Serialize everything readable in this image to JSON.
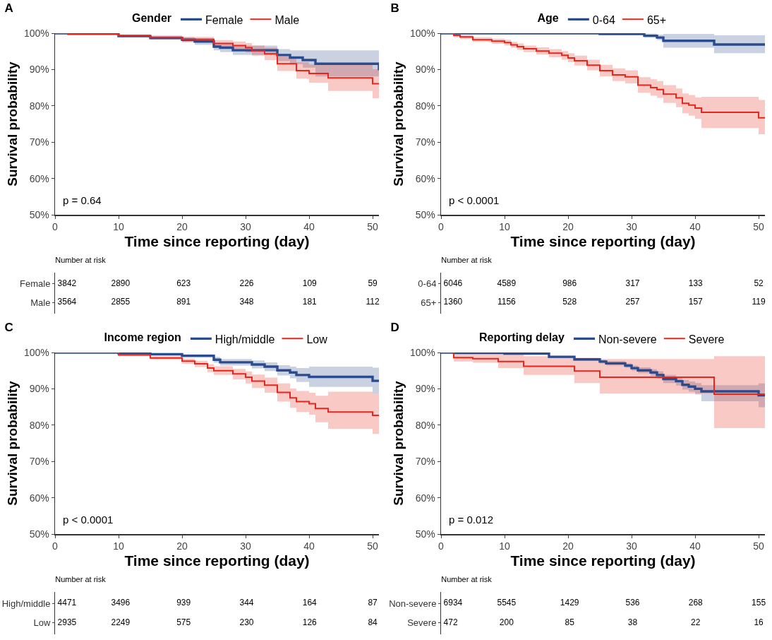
{
  "chart_data": [
    {
      "type": "step",
      "title": "A",
      "xlabel": "Time since reporting (day)",
      "ylabel": "Survival probability",
      "legend_title": "Gender",
      "legend": "top",
      "annotations": [
        "p = 0.64"
      ],
      "xlim": [
        0,
        51
      ],
      "xticks": [
        0,
        10,
        20,
        30,
        40,
        50
      ],
      "ylim": [
        50,
        100
      ],
      "yticks": [
        {
          "value": 50,
          "label": "50%"
        },
        {
          "value": 60,
          "label": "60%"
        },
        {
          "value": 70,
          "label": "70%"
        },
        {
          "value": 80,
          "label": "80%"
        },
        {
          "value": 90,
          "label": "90%"
        },
        {
          "value": 100,
          "label": "100%"
        }
      ],
      "series": [
        {
          "name": "Female",
          "color": "#2a4b8d",
          "x": [
            0,
            10,
            15,
            20,
            22,
            25,
            26,
            28,
            35,
            37,
            39,
            41,
            51
          ],
          "values": [
            100,
            99.2,
            98.7,
            98.2,
            97.7,
            96.3,
            96.0,
            95.3,
            94.0,
            93.3,
            92.6,
            91.6,
            89.8
          ],
          "lower": [
            100,
            99.0,
            98.3,
            97.5,
            96.8,
            95.3,
            94.8,
            94.0,
            92.3,
            91.5,
            90.5,
            88.1,
            85.8
          ],
          "upper": [
            100,
            99.6,
            99.3,
            98.9,
            98.6,
            97.3,
            97.1,
            96.6,
            95.6,
            95.3,
            95.3,
            95.3,
            95.3
          ]
        },
        {
          "name": "Male",
          "color": "#e8261c",
          "x": [
            0,
            2,
            10,
            15,
            20,
            25,
            28,
            30,
            31,
            33,
            35,
            38,
            40,
            43,
            50,
            51
          ],
          "values": [
            100,
            99.7,
            99.3,
            98.8,
            98.3,
            97.2,
            96.6,
            96.0,
            95.2,
            94.3,
            91.6,
            89.7,
            88.9,
            87.7,
            86.1,
            86.1
          ],
          "lower": [
            100,
            99.5,
            99.0,
            98.3,
            97.6,
            96.3,
            95.5,
            94.7,
            93.8,
            92.6,
            89.6,
            87.5,
            86.4,
            84.1,
            82.1,
            82.1
          ],
          "upper": [
            100,
            99.9,
            99.6,
            99.3,
            99.0,
            98.1,
            97.7,
            97.3,
            96.6,
            96.0,
            93.6,
            92.0,
            91.4,
            91.3,
            90.1,
            90.1
          ]
        }
      ]
    },
    {
      "type": "step",
      "title": "B",
      "xlabel": "Time since reporting (day)",
      "ylabel": "Survival probability",
      "legend_title": "Age",
      "legend": "top",
      "annotations": [
        "p < 0.0001"
      ],
      "xlim": [
        0,
        51
      ],
      "xticks": [
        0,
        10,
        20,
        30,
        40,
        50
      ],
      "ylim": [
        50,
        100
      ],
      "yticks": [
        {
          "value": 50,
          "label": "50%"
        },
        {
          "value": 60,
          "label": "60%"
        },
        {
          "value": 70,
          "label": "70%"
        },
        {
          "value": 80,
          "label": "80%"
        },
        {
          "value": 90,
          "label": "90%"
        },
        {
          "value": 100,
          "label": "100%"
        }
      ],
      "series": [
        {
          "name": "0-64",
          "color": "#2a4b8d",
          "x": [
            0,
            25,
            32,
            34,
            35,
            43,
            51
          ],
          "values": [
            100,
            99.8,
            99.3,
            98.8,
            97.9,
            96.9,
            96.9
          ],
          "lower": [
            100,
            99.6,
            98.8,
            98.1,
            96.0,
            94.5,
            94.5
          ],
          "upper": [
            100,
            100,
            99.9,
            99.6,
            99.8,
            99.4,
            99.4
          ]
        },
        {
          "name": "65+",
          "color": "#e8261c",
          "x": [
            0,
            2,
            3,
            5,
            8,
            10,
            11,
            12,
            13,
            15,
            17,
            19,
            20,
            21,
            23,
            25,
            27,
            29,
            31,
            33,
            34,
            35,
            37,
            38,
            39,
            40,
            41,
            50,
            51
          ],
          "values": [
            100,
            99.4,
            99.0,
            98.2,
            97.8,
            97.4,
            96.8,
            96.3,
            95.7,
            95.1,
            94.5,
            93.9,
            93.2,
            92.4,
            91.2,
            89.7,
            88.5,
            88.0,
            85.7,
            85.0,
            84.5,
            83.2,
            82.2,
            80.7,
            80.2,
            79.4,
            78.2,
            76.7,
            76.7
          ],
          "lower": [
            100,
            98.9,
            98.4,
            97.6,
            97.1,
            96.6,
            96.0,
            95.4,
            94.8,
            94.1,
            93.4,
            92.7,
            92.0,
            91.1,
            89.8,
            88.1,
            86.8,
            86.2,
            83.6,
            82.8,
            82.2,
            80.8,
            79.6,
            77.9,
            77.3,
            76.4,
            73.9,
            72.2,
            72.2
          ],
          "upper": [
            100,
            99.8,
            99.5,
            98.9,
            98.5,
            98.2,
            97.6,
            97.2,
            96.6,
            96.1,
            95.6,
            95.1,
            94.5,
            93.8,
            92.7,
            91.3,
            90.3,
            89.8,
            87.9,
            87.3,
            86.8,
            85.7,
            84.8,
            83.4,
            83.0,
            82.3,
            82.5,
            81.6,
            81.6
          ]
        }
      ]
    },
    {
      "type": "other",
      "title": "Number at risk",
      "y_categories": [
        "Female",
        "Male"
      ],
      "annotations": [
        "3842",
        "2890",
        "623",
        "226",
        "109",
        "59",
        "3564",
        "2855",
        "891",
        "348",
        "181",
        "112"
      ]
    },
    {
      "type": "other",
      "title": "Number at risk",
      "y_categories": [
        "0-64",
        "65+"
      ],
      "annotations": [
        "6046",
        "4589",
        "986",
        "317",
        "133",
        "52",
        "1360",
        "1156",
        "528",
        "257",
        "157",
        "119"
      ]
    },
    {
      "type": "step",
      "title": "C",
      "xlabel": "Time since reporting (day)",
      "ylabel": "Survival probability",
      "legend_title": "Income region",
      "legend": "top",
      "annotations": [
        "p < 0.0001"
      ],
      "xlim": [
        0,
        51
      ],
      "xticks": [
        0,
        10,
        20,
        30,
        40,
        50
      ],
      "ylim": [
        50,
        100
      ],
      "yticks": [
        {
          "value": 50,
          "label": "50%"
        },
        {
          "value": 60,
          "label": "60%"
        },
        {
          "value": 70,
          "label": "70%"
        },
        {
          "value": 80,
          "label": "80%"
        },
        {
          "value": 90,
          "label": "90%"
        },
        {
          "value": 100,
          "label": "100%"
        }
      ],
      "series": [
        {
          "name": "High/middle",
          "color": "#2a4b8d",
          "x": [
            0,
            10,
            15,
            20,
            25,
            26,
            31,
            33,
            35,
            37,
            38,
            40,
            50,
            51
          ],
          "values": [
            100,
            99.8,
            99.5,
            99.1,
            98.0,
            97.3,
            96.7,
            96.1,
            95.1,
            94.5,
            93.8,
            93.3,
            92.2,
            92.2
          ],
          "lower": [
            100,
            99.6,
            99.2,
            98.6,
            97.2,
            96.4,
            95.6,
            94.9,
            93.7,
            92.9,
            91.9,
            90.5,
            88.7,
            88.7
          ],
          "upper": [
            100,
            99.9,
            99.8,
            99.5,
            98.8,
            98.2,
            97.8,
            97.3,
            96.5,
            96.1,
            95.7,
            96.1,
            95.8,
            95.8
          ]
        },
        {
          "name": "Low",
          "color": "#e8261c",
          "x": [
            0,
            10,
            15,
            20,
            22,
            24,
            25,
            28,
            30,
            31,
            33,
            35,
            37,
            38,
            40,
            41,
            43,
            50,
            51
          ],
          "values": [
            100,
            99.3,
            98.5,
            97.6,
            96.9,
            95.7,
            95.0,
            94.1,
            93.2,
            92.1,
            91.0,
            89.0,
            87.5,
            86.5,
            85.9,
            84.6,
            83.6,
            82.7,
            82.7
          ],
          "lower": [
            100,
            99.0,
            98.0,
            96.9,
            96.0,
            94.6,
            93.8,
            92.6,
            91.5,
            90.2,
            88.9,
            86.5,
            84.8,
            83.6,
            82.9,
            80.8,
            79.0,
            77.6,
            77.6
          ],
          "upper": [
            100,
            99.6,
            99.0,
            98.3,
            97.7,
            96.8,
            96.2,
            95.5,
            94.8,
            93.9,
            93.1,
            91.5,
            90.1,
            89.4,
            88.9,
            88.1,
            89.2,
            88.7,
            88.7
          ]
        }
      ]
    },
    {
      "type": "step",
      "title": "D",
      "xlabel": "Time since reporting (day)",
      "ylabel": "Survival probability",
      "legend_title": "Reporting delay",
      "legend": "top",
      "annotations": [
        "p = 0.012"
      ],
      "xlim": [
        0,
        51
      ],
      "xticks": [
        0,
        10,
        20,
        30,
        40,
        50
      ],
      "ylim": [
        50,
        100
      ],
      "yticks": [
        {
          "value": 50,
          "label": "50%"
        },
        {
          "value": 60,
          "label": "60%"
        },
        {
          "value": 70,
          "label": "70%"
        },
        {
          "value": 80,
          "label": "80%"
        },
        {
          "value": 90,
          "label": "90%"
        },
        {
          "value": 100,
          "label": "100%"
        }
      ],
      "series": [
        {
          "name": "Non-severe",
          "color": "#2a4b8d",
          "x": [
            0,
            2,
            10,
            17,
            21,
            25,
            26,
            29,
            30,
            31,
            33,
            34,
            35,
            37,
            38,
            39,
            40,
            41,
            50,
            51
          ],
          "values": [
            100,
            99.9,
            99.7,
            98.8,
            98.1,
            97.5,
            97.0,
            96.4,
            95.7,
            95.1,
            94.5,
            93.8,
            92.7,
            92.1,
            91.1,
            90.6,
            90.0,
            89.3,
            88.2,
            88.2
          ],
          "lower": [
            100,
            99.8,
            99.5,
            98.5,
            97.7,
            97.0,
            96.4,
            95.8,
            95.0,
            94.3,
            93.6,
            92.8,
            91.6,
            90.9,
            89.8,
            89.2,
            88.4,
            86.6,
            84.9,
            84.9
          ],
          "upper": [
            100,
            100,
            99.8,
            99.1,
            98.5,
            98.0,
            97.6,
            97.0,
            96.4,
            95.9,
            95.4,
            94.8,
            93.8,
            93.3,
            92.4,
            92.0,
            91.6,
            91.0,
            91.5,
            91.5
          ]
        },
        {
          "name": "Severe",
          "color": "#e8261c",
          "x": [
            0,
            2,
            5,
            9,
            13,
            21,
            25,
            43,
            51
          ],
          "values": [
            100,
            98.6,
            98.3,
            97.5,
            96.2,
            94.9,
            93.2,
            88.5,
            88.5
          ],
          "lower": [
            100,
            97.5,
            97.2,
            95.7,
            93.8,
            91.6,
            88.7,
            79.2,
            79.2
          ],
          "upper": [
            100,
            99.9,
            99.9,
            99.6,
            99.0,
            98.5,
            98.2,
            99.0,
            99.0
          ]
        }
      ]
    },
    {
      "type": "other",
      "title": "Number at risk",
      "y_categories": [
        "High/middle",
        "Low"
      ],
      "annotations": [
        "4471",
        "3496",
        "939",
        "344",
        "164",
        "87",
        "2935",
        "2249",
        "575",
        "230",
        "126",
        "84"
      ]
    },
    {
      "type": "other",
      "title": "Number at risk",
      "y_categories": [
        "Non-severe",
        "Severe"
      ],
      "annotations": [
        "6934",
        "5545",
        "1429",
        "536",
        "268",
        "155",
        "472",
        "200",
        "85",
        "38",
        "22",
        "16"
      ]
    }
  ]
}
